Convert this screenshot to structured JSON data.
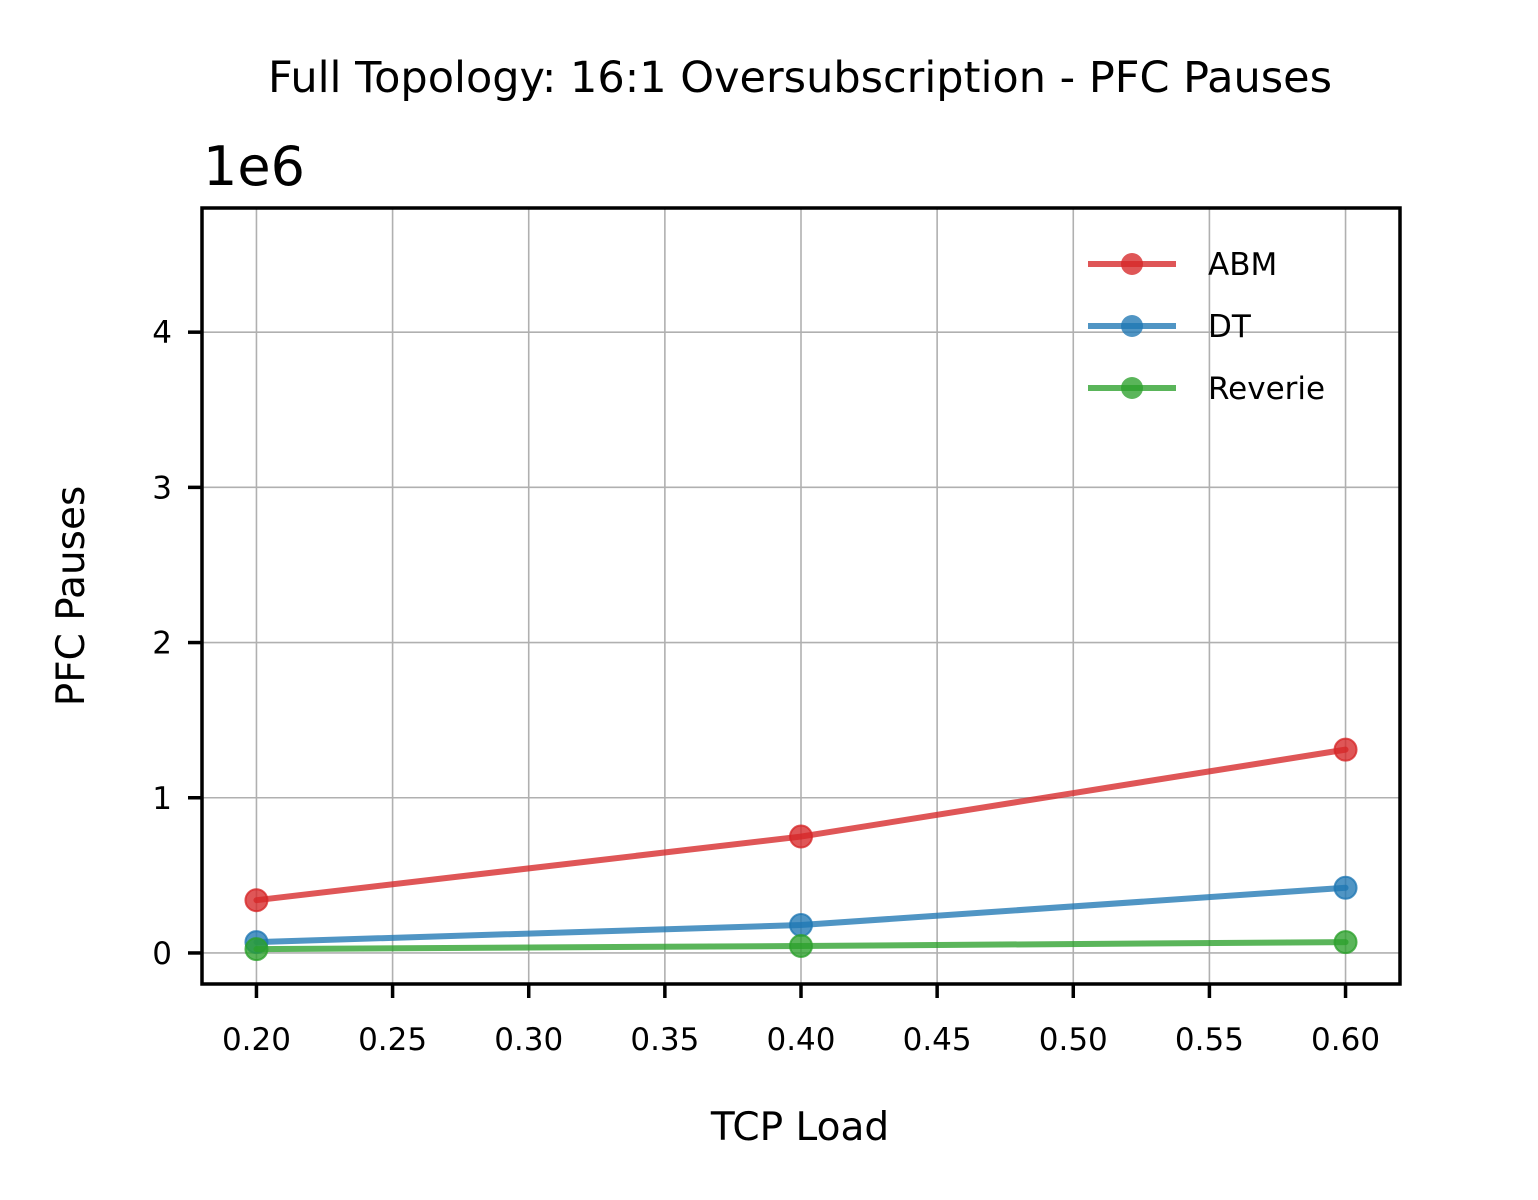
{
  "chart_data": {
    "type": "line",
    "title": "Full Topology: 16:1 Oversubscription - PFC Pauses",
    "xlabel": "TCP Load",
    "ylabel": "PFC Pauses",
    "y_offset_label": "1e6",
    "y_multiplier": 1000000,
    "x": [
      0.2,
      0.4,
      0.6
    ],
    "xlim": [
      0.18,
      0.62
    ],
    "ylim": [
      -200000,
      4800000
    ],
    "x_ticks": [
      0.2,
      0.25,
      0.3,
      0.35,
      0.4,
      0.45,
      0.5,
      0.55,
      0.6
    ],
    "x_tick_labels": [
      "0.20",
      "0.25",
      "0.30",
      "0.35",
      "0.40",
      "0.45",
      "0.50",
      "0.55",
      "0.60"
    ],
    "y_ticks": [
      0,
      1000000,
      2000000,
      3000000,
      4000000
    ],
    "y_tick_labels": [
      "0",
      "1",
      "2",
      "3",
      "4"
    ],
    "grid": true,
    "legend_position": "top-right",
    "series": [
      {
        "name": "ABM",
        "color": "#d62728",
        "values": [
          340000,
          750000,
          1310000
        ]
      },
      {
        "name": "DT",
        "color": "#1f77b4",
        "values": [
          70000,
          180000,
          420000
        ]
      },
      {
        "name": "Reverie",
        "color": "#2ca02c",
        "values": [
          25000,
          45000,
          70000
        ]
      }
    ]
  }
}
